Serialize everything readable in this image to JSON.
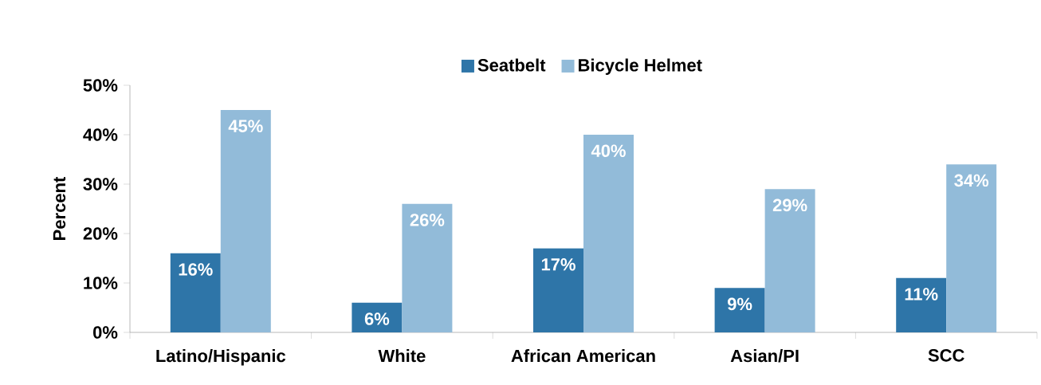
{
  "chart_data": {
    "type": "bar",
    "ylabel": "Percent",
    "categories": [
      "Latino/Hispanic",
      "White",
      "African American",
      "Asian/PI",
      "SCC"
    ],
    "series": [
      {
        "name": "Seatbelt",
        "color": "#2e75a8",
        "values": [
          16,
          6,
          17,
          9,
          11
        ],
        "value_labels": [
          "16%",
          "6%",
          "17%",
          "9%",
          "11%"
        ]
      },
      {
        "name": "Bicycle Helmet",
        "color": "#92bbd9",
        "values": [
          45,
          26,
          40,
          29,
          34
        ],
        "value_labels": [
          "45%",
          "26%",
          "40%",
          "29%",
          "34%"
        ]
      }
    ],
    "ylim": [
      0,
      50
    ],
    "yticks": [
      {
        "value": 0,
        "label": "0%"
      },
      {
        "value": 10,
        "label": "10%"
      },
      {
        "value": 20,
        "label": "20%"
      },
      {
        "value": 30,
        "label": "30%"
      },
      {
        "value": 40,
        "label": "40%"
      },
      {
        "value": 50,
        "label": "50%"
      }
    ],
    "legend": "top",
    "grid": false
  }
}
